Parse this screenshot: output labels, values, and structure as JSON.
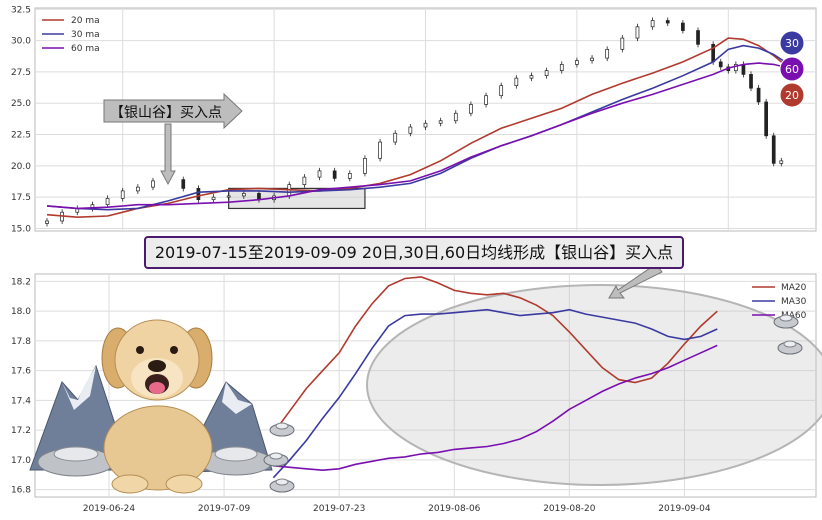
{
  "colors": {
    "ma20": "#b03a2e",
    "ma30": "#3a3aa0",
    "ma60": "#7a0fb0",
    "grid": "#dddddd",
    "panel_bg": "#ffffff"
  },
  "banner": {
    "text": "2019-07-15至2019-09-09 20日,30日,60日均线形成【银山谷】买入点"
  },
  "arrow_label": {
    "text": "【银山谷】买入点"
  },
  "badges": [
    {
      "text": "30",
      "color": "#3a3aa0"
    },
    {
      "text": "60",
      "color": "#7a0fb0"
    },
    {
      "text": "20",
      "color": "#b03a2e"
    }
  ],
  "chart_data": [
    {
      "type": "line",
      "chart": "price-candlestick",
      "ylim": [
        14.8,
        32.6
      ],
      "yticks": [
        "15.0",
        "17.5",
        "20.0",
        "22.5",
        "25.0",
        "27.5",
        "30.0",
        "32.5"
      ],
      "ytick_values": [
        15.0,
        17.5,
        20.0,
        22.5,
        25.0,
        27.5,
        30.0,
        32.5
      ],
      "x_range": [
        0,
        100
      ],
      "legend": {
        "placement": "top-left",
        "entries": [
          "20 ma",
          "30 ma",
          "60 ma"
        ]
      },
      "highlight_box": {
        "x_start": 24,
        "x_end": 42,
        "y_low": 16.6,
        "y_high": 18.2
      },
      "series": [
        {
          "name": "20 ma",
          "x": [
            0,
            4,
            8,
            12,
            16,
            20,
            24,
            28,
            32,
            36,
            40,
            44,
            48,
            52,
            56,
            60,
            64,
            68,
            72,
            76,
            80,
            84,
            88,
            90,
            92,
            94,
            96,
            98
          ],
          "y": [
            16.1,
            15.9,
            16.0,
            16.6,
            17.0,
            17.6,
            18.1,
            18.2,
            18.1,
            18.0,
            18.2,
            18.6,
            19.3,
            20.4,
            21.8,
            23.0,
            23.8,
            24.6,
            25.7,
            26.6,
            27.4,
            28.3,
            29.4,
            30.2,
            30.1,
            29.6,
            28.8,
            27.8
          ]
        },
        {
          "name": "30 ma",
          "x": [
            0,
            4,
            8,
            12,
            16,
            20,
            24,
            28,
            32,
            36,
            40,
            44,
            48,
            52,
            56,
            60,
            64,
            68,
            72,
            76,
            80,
            84,
            88,
            90,
            92,
            94,
            96,
            98
          ],
          "y": [
            16.8,
            16.6,
            16.5,
            16.6,
            17.2,
            17.9,
            18.0,
            18.0,
            17.9,
            18.0,
            18.1,
            18.3,
            18.6,
            19.4,
            20.6,
            21.6,
            22.4,
            23.3,
            24.3,
            25.3,
            26.2,
            27.2,
            28.3,
            29.3,
            29.6,
            29.4,
            28.9,
            28.1
          ]
        },
        {
          "name": "60 ma",
          "x": [
            0,
            4,
            8,
            12,
            16,
            20,
            24,
            28,
            32,
            36,
            40,
            44,
            48,
            52,
            56,
            60,
            64,
            68,
            72,
            76,
            80,
            84,
            88,
            90,
            92,
            94,
            96,
            98
          ],
          "y": [
            16.8,
            16.6,
            16.7,
            16.9,
            16.9,
            17.0,
            17.1,
            17.3,
            17.6,
            18.1,
            18.3,
            18.5,
            18.8,
            19.6,
            20.7,
            21.6,
            22.4,
            23.3,
            24.2,
            25.0,
            25.7,
            26.5,
            27.3,
            27.8,
            28.1,
            28.2,
            28.1,
            27.8
          ]
        }
      ],
      "candles": {
        "x": [
          0,
          2,
          4,
          6,
          8,
          10,
          12,
          14,
          16,
          18,
          20,
          22,
          24,
          26,
          28,
          30,
          32,
          34,
          36,
          38,
          40,
          42,
          44,
          46,
          48,
          50,
          52,
          54,
          56,
          58,
          60,
          62,
          64,
          66,
          68,
          70,
          72,
          74,
          76,
          78,
          80,
          82,
          84,
          86,
          88,
          89,
          90,
          91,
          92,
          93,
          94,
          95,
          96,
          97
        ],
        "close": [
          15.6,
          16.3,
          16.6,
          16.9,
          17.4,
          18.0,
          18.3,
          18.8,
          18.9,
          18.2,
          17.3,
          17.5,
          17.6,
          17.8,
          17.3,
          17.6,
          18.5,
          19.1,
          19.6,
          19.0,
          19.4,
          20.6,
          21.9,
          22.6,
          23.1,
          23.4,
          23.6,
          24.2,
          24.9,
          25.6,
          26.4,
          27.0,
          27.2,
          27.6,
          28.1,
          28.4,
          28.6,
          29.3,
          30.2,
          31.1,
          31.6,
          31.4,
          30.8,
          29.7,
          28.3,
          27.9,
          27.6,
          28.1,
          27.3,
          26.2,
          25.1,
          22.4,
          20.2,
          20.4
        ]
      }
    },
    {
      "type": "line",
      "chart": "moving-average-zoom",
      "ylim": [
        16.75,
        18.25
      ],
      "yticks": [
        "16.8",
        "17.0",
        "17.2",
        "17.4",
        "17.6",
        "17.8",
        "18.0",
        "18.2"
      ],
      "ytick_values": [
        16.8,
        17.0,
        17.2,
        17.4,
        17.6,
        17.8,
        18.0,
        18.2
      ],
      "xticks": [
        "2019-06-24",
        "2019-07-09",
        "2019-07-23",
        "2019-08-06",
        "2019-08-20",
        "2019-09-04"
      ],
      "xtick_positions": [
        2,
        16,
        30,
        44,
        58,
        72
      ],
      "x_range": [
        -7,
        88
      ],
      "legend": {
        "placement": "top-right",
        "entries": [
          "MA20",
          "MA30",
          "MA60"
        ]
      },
      "series": [
        {
          "name": "MA20",
          "x": [
            22,
            24,
            26,
            28,
            30,
            32,
            34,
            36,
            38,
            40,
            42,
            44,
            46,
            48,
            50,
            52,
            54,
            56,
            58,
            60,
            62,
            64,
            66,
            68,
            70,
            72,
            74,
            76
          ],
          "y": [
            17.18,
            17.33,
            17.48,
            17.6,
            17.72,
            17.9,
            18.05,
            18.17,
            18.22,
            18.23,
            18.19,
            18.14,
            18.12,
            18.11,
            18.12,
            18.09,
            18.04,
            17.97,
            17.86,
            17.74,
            17.62,
            17.54,
            17.52,
            17.55,
            17.65,
            17.78,
            17.9,
            18.0
          ]
        },
        {
          "name": "MA30",
          "x": [
            22,
            24,
            26,
            28,
            30,
            32,
            34,
            36,
            38,
            40,
            42,
            44,
            46,
            48,
            50,
            52,
            54,
            56,
            58,
            60,
            62,
            64,
            66,
            68,
            70,
            72,
            74,
            76
          ],
          "y": [
            16.88,
            17.0,
            17.13,
            17.28,
            17.42,
            17.58,
            17.75,
            17.9,
            17.97,
            17.98,
            17.98,
            17.99,
            18.0,
            18.01,
            17.99,
            17.97,
            17.98,
            17.99,
            18.01,
            17.98,
            17.96,
            17.94,
            17.92,
            17.88,
            17.83,
            17.81,
            17.83,
            17.88
          ]
        },
        {
          "name": "MA60",
          "x": [
            22,
            24,
            26,
            28,
            30,
            32,
            34,
            36,
            38,
            40,
            42,
            44,
            46,
            48,
            50,
            52,
            54,
            56,
            58,
            60,
            62,
            64,
            66,
            68,
            70,
            72,
            74,
            76
          ],
          "y": [
            16.96,
            16.95,
            16.94,
            16.93,
            16.94,
            16.97,
            16.99,
            17.01,
            17.02,
            17.04,
            17.05,
            17.07,
            17.08,
            17.09,
            17.11,
            17.14,
            17.19,
            17.26,
            17.34,
            17.4,
            17.46,
            17.51,
            17.55,
            17.58,
            17.62,
            17.67,
            17.72,
            17.77
          ]
        }
      ]
    }
  ]
}
